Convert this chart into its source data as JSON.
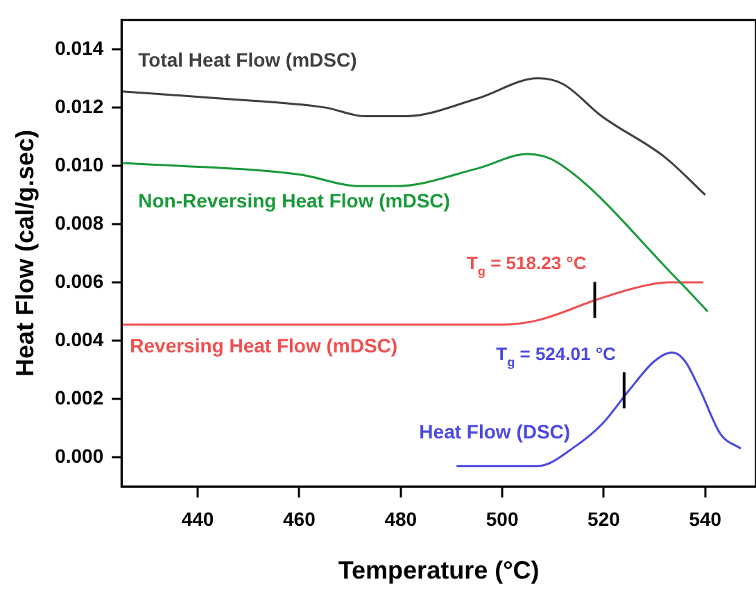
{
  "chart_data": {
    "type": "line",
    "xlabel": "Temperature (°C)",
    "ylabel": "Heat Flow (cal/g.sec)",
    "xlim": [
      425,
      550
    ],
    "xticks": [
      440,
      460,
      480,
      500,
      520,
      540
    ],
    "ylim": [
      -0.001,
      0.015
    ],
    "yticks": [
      {
        "value": 0,
        "label": "0.000"
      },
      0.002,
      0.004,
      0.006,
      0.008,
      {
        "value": 0.01,
        "label": "0.010"
      },
      0.012,
      0.014
    ],
    "grid": false,
    "legend": false,
    "marker": "none",
    "line_style": "solid",
    "series": [
      {
        "name": "Total Heat Flow (mDSC)",
        "color": "#404040",
        "x": [
          425,
          445,
          465,
          473,
          481,
          495,
          507,
          512,
          519.6,
          532,
          540
        ],
        "values": [
          0.01255,
          0.0123,
          0.012,
          0.0117,
          0.0117,
          0.0123,
          0.013,
          0.0128,
          0.0117,
          0.0103,
          0.009
        ]
      },
      {
        "name": "Non-Reversing Heat Flow (mDSC)",
        "color": "#1a9a3a",
        "x": [
          425,
          460,
          472,
          479,
          495,
          505,
          511,
          534.5,
          540.5
        ],
        "values": [
          0.0101,
          0.0097,
          0.0093,
          0.0093,
          0.0099,
          0.0104,
          0.0101,
          0.0061,
          0.005
        ]
      },
      {
        "name": "Reversing Heat Flow (mDSC)",
        "color": "#f05050",
        "x": [
          425,
          480,
          500,
          507,
          518.5,
          526,
          532.6,
          539.6
        ],
        "values": [
          0.00455,
          0.00455,
          0.00455,
          0.0047,
          0.0054,
          0.0058,
          0.006,
          0.006
        ]
      },
      {
        "name": "Heat Flow (DSC)",
        "color": "#4a4ae0",
        "x": [
          491,
          500,
          507,
          514.6,
          520,
          525,
          530,
          533.5,
          536,
          539,
          543,
          547
        ],
        "values": [
          -0.0003,
          -0.0003,
          -0.0003,
          0.0004,
          0.0012,
          0.0023,
          0.0033,
          0.0036,
          0.0033,
          0.0023,
          0.0008,
          0.0003
        ]
      }
    ],
    "annotations": [
      {
        "text": "T$_{g}$ = 518.23 °C",
        "x": 518.23,
        "y": 0.0054
      },
      {
        "text": "T$_{g}$ = 524.01 °C",
        "x": 524.01,
        "y": 0.0023
      }
    ]
  }
}
